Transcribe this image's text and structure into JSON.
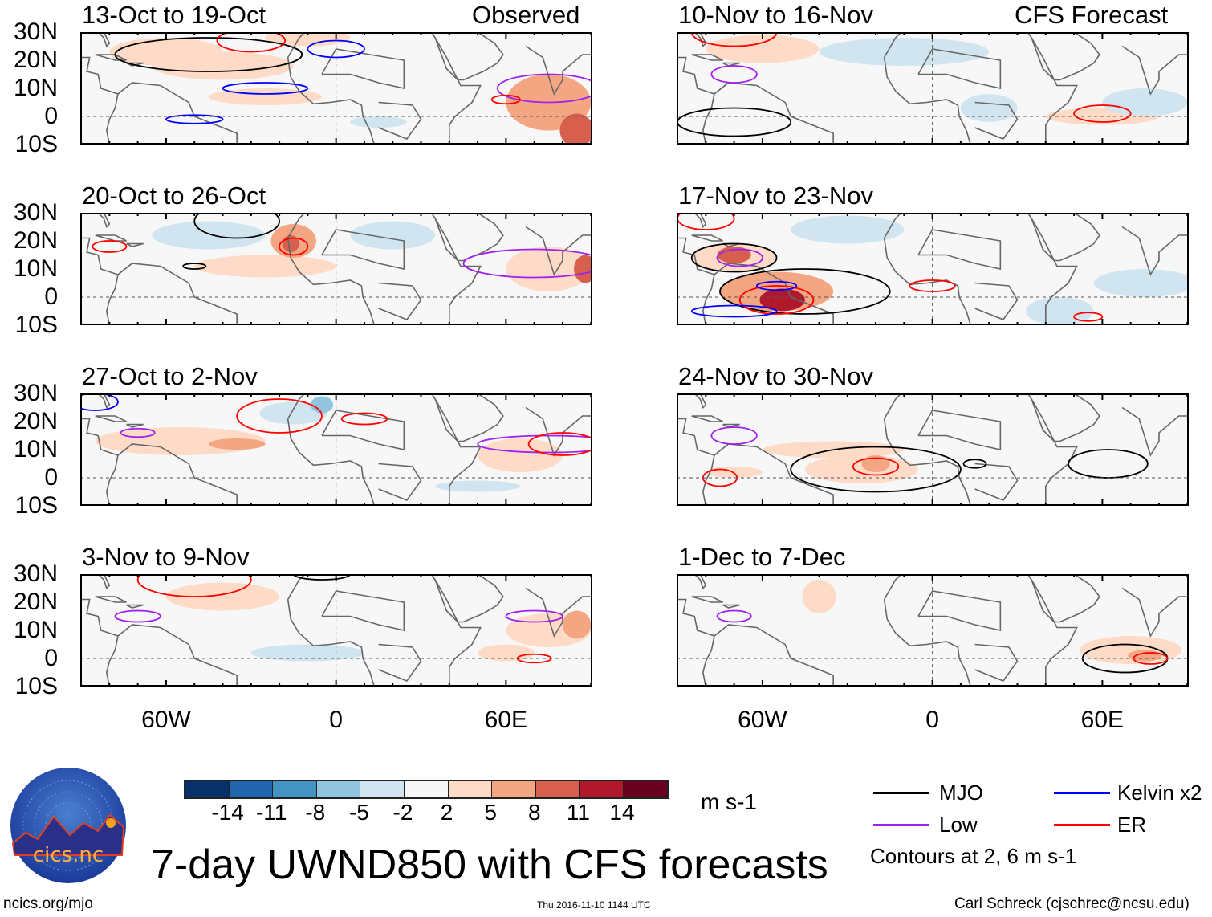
{
  "header": {
    "left_label": "Observed",
    "right_label": "CFS Forecast"
  },
  "panels": [
    {
      "title": "13-Oct to 19-Oct",
      "column": "observed"
    },
    {
      "title": "20-Oct to 26-Oct",
      "column": "observed"
    },
    {
      "title": "27-Oct to 2-Nov",
      "column": "observed"
    },
    {
      "title": "3-Nov to 9-Nov",
      "column": "observed"
    },
    {
      "title": "10-Nov to 16-Nov",
      "column": "forecast"
    },
    {
      "title": "17-Nov to 23-Nov",
      "column": "forecast"
    },
    {
      "title": "24-Nov to 30-Nov",
      "column": "forecast"
    },
    {
      "title": "1-Dec to 7-Dec",
      "column": "forecast"
    }
  ],
  "lat_labels": [
    "30N",
    "20N",
    "10N",
    "0",
    "10S"
  ],
  "lon_labels": [
    "60W",
    "0",
    "60E"
  ],
  "colorbar": {
    "colors": [
      "#08306b",
      "#2166ac",
      "#4393c3",
      "#92c5de",
      "#d1e5f0",
      "#f7f7f7",
      "#fddbc7",
      "#f4a582",
      "#d6604d",
      "#b2182b",
      "#67001f"
    ],
    "ticks": [
      "-14",
      "-11",
      "-8",
      "-5",
      "-2",
      "2",
      "5",
      "8",
      "11",
      "14"
    ],
    "units": "m s-1"
  },
  "legend": {
    "items": [
      {
        "label": "MJO",
        "color": "#000000"
      },
      {
        "label": "Kelvin x2",
        "color": "#0000ff"
      },
      {
        "label": "Low",
        "color": "#a020f0"
      },
      {
        "label": "ER",
        "color": "#ff0000"
      }
    ],
    "note": "Contours at 2, 6 m s-1"
  },
  "title": "7-day UWND850 with CFS forecasts",
  "logo": {
    "text": "cics.nc",
    "ring_text": "Cooperative Institute for Climate and Satellites"
  },
  "footer": {
    "left": "ncics.org/mjo",
    "center": "Thu 2016-11-10 1144 UTC",
    "right": "Carl Schreck (cjschrec@ncsu.edu)"
  }
}
